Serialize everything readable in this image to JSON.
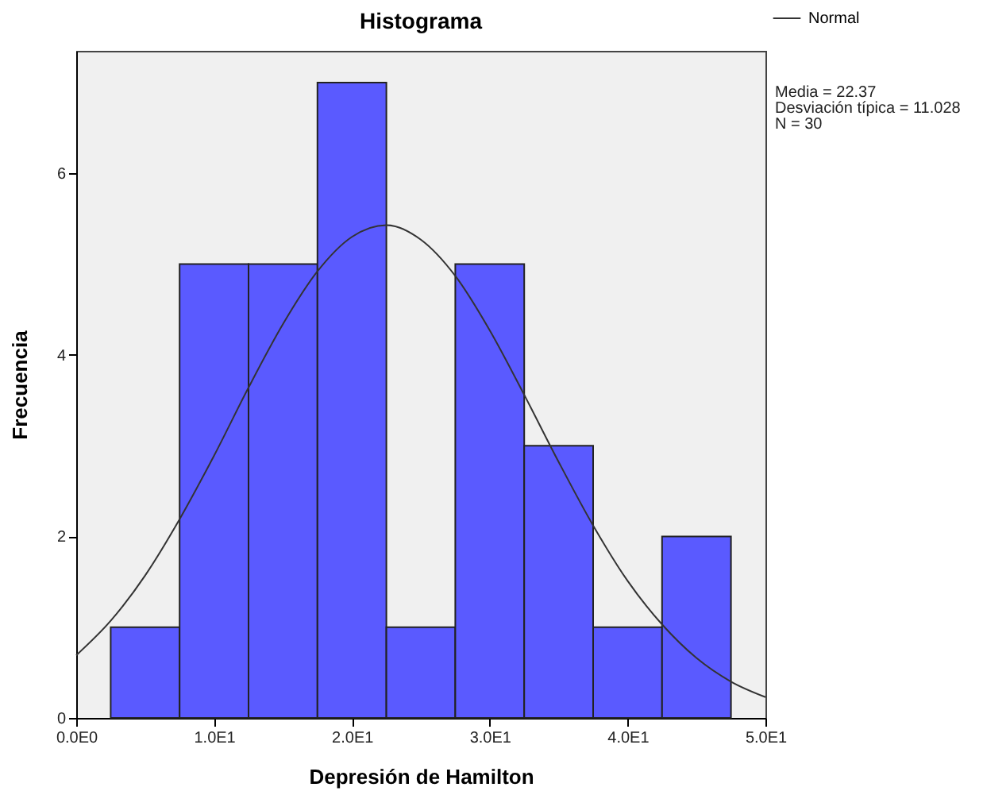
{
  "chart_data": {
    "type": "histogram",
    "title": "Histograma",
    "xlabel": "Depresión de Hamilton",
    "ylabel": "Frecuencia",
    "bins": [
      2.5,
      7.5,
      12.5,
      17.5,
      22.5,
      27.5,
      32.5,
      37.5,
      42.5,
      47.5
    ],
    "values": [
      1,
      5,
      5,
      7,
      1,
      5,
      3,
      1,
      2
    ],
    "color": "#5a5aff",
    "series": [
      {
        "name": "Normal",
        "type": "line",
        "color": "#333333",
        "x": [
          0,
          2.5,
          5,
          7.5,
          10,
          12.5,
          15,
          17.5,
          20,
          22.5,
          25,
          27.5,
          30,
          32.5,
          35,
          37.5,
          40,
          42.5,
          45,
          47.5,
          50
        ],
        "values": [
          0.69,
          1.07,
          1.57,
          2.19,
          2.89,
          3.64,
          4.34,
          4.92,
          5.3,
          5.43,
          5.27,
          4.87,
          4.27,
          3.56,
          2.82,
          2.12,
          1.51,
          1.03,
          0.66,
          0.4,
          0.23
        ]
      }
    ],
    "annotations": [
      "Media = 22.37",
      "Desviación típica = 11.028",
      "N = 30"
    ],
    "xlim": [
      0,
      50
    ],
    "xticks": [
      {
        "value": 0,
        "label": "0.0E0"
      },
      {
        "value": 10,
        "label": "1.0E1"
      },
      {
        "value": 20,
        "label": "2.0E1"
      },
      {
        "value": 30,
        "label": "3.0E1"
      },
      {
        "value": 40,
        "label": "4.0E1"
      },
      {
        "value": 50,
        "label": "5.0E1"
      }
    ],
    "ylim": [
      0,
      7.35
    ],
    "yticks": [
      0,
      2,
      4,
      6
    ],
    "grid": false,
    "legend": "top right"
  }
}
